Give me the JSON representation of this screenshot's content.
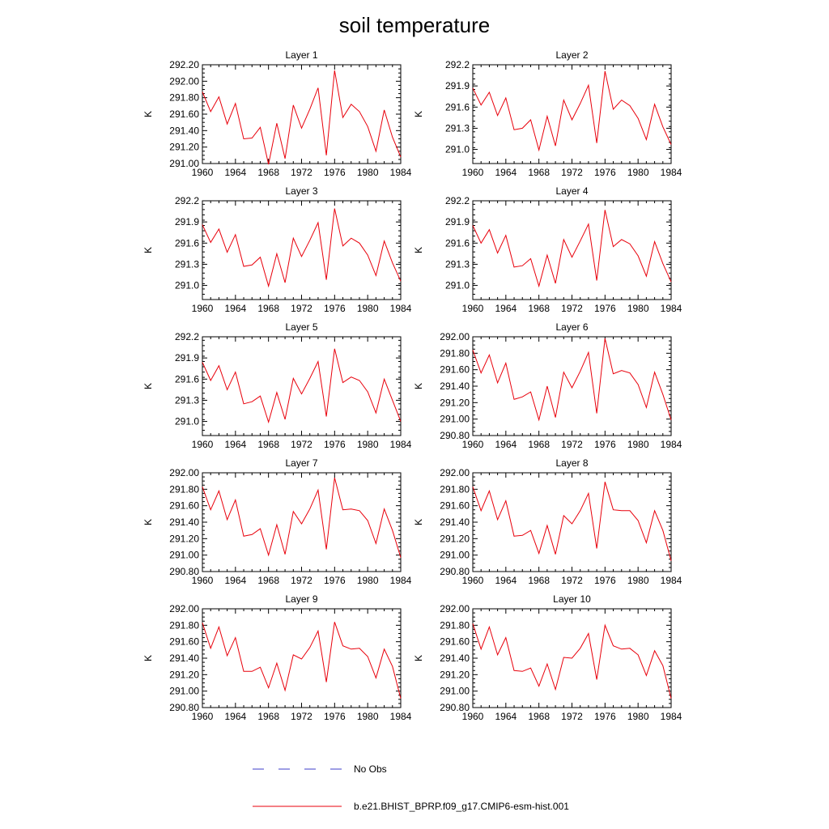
{
  "title": "soil temperature",
  "colors": {
    "model": "#e8000b",
    "obs": "#3c3cc8",
    "axis": "#000000"
  },
  "legend": {
    "obs_label": "No Obs",
    "model_label": "b.e21.BHIST_BPRP.f09_g17.CMIP6-esm-hist.001"
  },
  "chart_data": [
    {
      "type": "line",
      "title": "Layer 1",
      "ylabel": "K",
      "xlim": [
        1960,
        1984
      ],
      "ylim": [
        291.0,
        292.2
      ],
      "xticks": [
        "1960",
        "1964",
        "1968",
        "1972",
        "1976",
        "1980",
        "1984"
      ],
      "yticks": [
        "291.00",
        "291.20",
        "291.40",
        "291.60",
        "291.80",
        "292.00",
        "292.20"
      ],
      "x": [
        1960,
        1961,
        1962,
        1963,
        1964,
        1965,
        1966,
        1967,
        1968,
        1969,
        1970,
        1971,
        1972,
        1973,
        1974,
        1975,
        1976,
        1977,
        1978,
        1979,
        1980,
        1981,
        1982,
        1983,
        1984
      ],
      "series": [
        {
          "name": "b.e21.BHIST_BPRP.f09_g17.CMIP6-esm-hist.001",
          "values": [
            291.87,
            291.63,
            291.81,
            291.48,
            291.73,
            291.3,
            291.31,
            291.44,
            290.99,
            291.49,
            291.06,
            291.71,
            291.43,
            291.66,
            291.92,
            291.1,
            292.13,
            291.56,
            291.72,
            291.63,
            291.45,
            291.15,
            291.65,
            291.32,
            291.08
          ]
        }
      ]
    },
    {
      "type": "line",
      "title": "Layer 2",
      "ylabel": "K",
      "xlim": [
        1960,
        1984
      ],
      "ylim": [
        290.8,
        292.2
      ],
      "xticks": [
        "1960",
        "1964",
        "1968",
        "1972",
        "1976",
        "1980",
        "1984"
      ],
      "yticks": [
        "291.0",
        "291.3",
        "291.6",
        "291.9",
        "292.2"
      ],
      "x": [
        1960,
        1961,
        1962,
        1963,
        1964,
        1965,
        1966,
        1967,
        1968,
        1969,
        1970,
        1971,
        1972,
        1973,
        1974,
        1975,
        1976,
        1977,
        1978,
        1979,
        1980,
        1981,
        1982,
        1983,
        1984
      ],
      "series": [
        {
          "name": "b.e21.BHIST_BPRP.f09_g17.CMIP6-esm-hist.001",
          "values": [
            291.87,
            291.63,
            291.81,
            291.48,
            291.73,
            291.28,
            291.3,
            291.42,
            290.99,
            291.47,
            291.05,
            291.7,
            291.42,
            291.65,
            291.91,
            291.09,
            292.11,
            291.57,
            291.7,
            291.62,
            291.44,
            291.14,
            291.64,
            291.32,
            291.07
          ]
        }
      ]
    },
    {
      "type": "line",
      "title": "Layer 3",
      "ylabel": "K",
      "xlim": [
        1960,
        1984
      ],
      "ylim": [
        290.8,
        292.2
      ],
      "xticks": [
        "1960",
        "1964",
        "1968",
        "1972",
        "1976",
        "1980",
        "1984"
      ],
      "yticks": [
        "291.0",
        "291.3",
        "291.6",
        "291.9",
        "292.2"
      ],
      "x": [
        1960,
        1961,
        1962,
        1963,
        1964,
        1965,
        1966,
        1967,
        1968,
        1969,
        1970,
        1971,
        1972,
        1973,
        1974,
        1975,
        1976,
        1977,
        1978,
        1979,
        1980,
        1981,
        1982,
        1983,
        1984
      ],
      "series": [
        {
          "name": "b.e21.BHIST_BPRP.f09_g17.CMIP6-esm-hist.001",
          "values": [
            291.86,
            291.61,
            291.8,
            291.47,
            291.72,
            291.27,
            291.29,
            291.4,
            290.99,
            291.45,
            291.04,
            291.67,
            291.41,
            291.64,
            291.89,
            291.08,
            292.09,
            291.56,
            291.67,
            291.6,
            291.43,
            291.14,
            291.63,
            291.32,
            291.06
          ]
        }
      ]
    },
    {
      "type": "line",
      "title": "Layer 4",
      "ylabel": "K",
      "xlim": [
        1960,
        1984
      ],
      "ylim": [
        290.8,
        292.2
      ],
      "xticks": [
        "1960",
        "1964",
        "1968",
        "1972",
        "1976",
        "1980",
        "1984"
      ],
      "yticks": [
        "291.0",
        "291.3",
        "291.6",
        "291.9",
        "292.2"
      ],
      "x": [
        1960,
        1961,
        1962,
        1963,
        1964,
        1965,
        1966,
        1967,
        1968,
        1969,
        1970,
        1971,
        1972,
        1973,
        1974,
        1975,
        1976,
        1977,
        1978,
        1979,
        1980,
        1981,
        1982,
        1983,
        1984
      ],
      "series": [
        {
          "name": "b.e21.BHIST_BPRP.f09_g17.CMIP6-esm-hist.001",
          "values": [
            291.85,
            291.6,
            291.79,
            291.46,
            291.71,
            291.26,
            291.28,
            291.38,
            290.99,
            291.43,
            291.03,
            291.65,
            291.4,
            291.63,
            291.87,
            291.07,
            292.07,
            291.55,
            291.65,
            291.59,
            291.42,
            291.13,
            291.62,
            291.31,
            291.05
          ]
        }
      ]
    },
    {
      "type": "line",
      "title": "Layer 5",
      "ylabel": "K",
      "xlim": [
        1960,
        1984
      ],
      "ylim": [
        290.8,
        292.2
      ],
      "xticks": [
        "1960",
        "1964",
        "1968",
        "1972",
        "1976",
        "1980",
        "1984"
      ],
      "yticks": [
        "291.0",
        "291.3",
        "291.6",
        "291.9",
        "292.2"
      ],
      "x": [
        1960,
        1961,
        1962,
        1963,
        1964,
        1965,
        1966,
        1967,
        1968,
        1969,
        1970,
        1971,
        1972,
        1973,
        1974,
        1975,
        1976,
        1977,
        1978,
        1979,
        1980,
        1981,
        1982,
        1983,
        1984
      ],
      "series": [
        {
          "name": "b.e21.BHIST_BPRP.f09_g17.CMIP6-esm-hist.001",
          "values": [
            291.84,
            291.58,
            291.79,
            291.45,
            291.7,
            291.25,
            291.28,
            291.36,
            290.99,
            291.41,
            291.03,
            291.61,
            291.39,
            291.61,
            291.85,
            291.07,
            292.03,
            291.55,
            291.63,
            291.58,
            291.42,
            291.12,
            291.6,
            291.3,
            291.0
          ]
        }
      ]
    },
    {
      "type": "line",
      "title": "Layer 6",
      "ylabel": "K",
      "xlim": [
        1960,
        1984
      ],
      "ylim": [
        290.8,
        292.0
      ],
      "xticks": [
        "1960",
        "1964",
        "1968",
        "1972",
        "1976",
        "1980",
        "1984"
      ],
      "yticks": [
        "290.80",
        "291.00",
        "291.20",
        "291.40",
        "291.60",
        "291.80",
        "292.00"
      ],
      "x": [
        1960,
        1961,
        1962,
        1963,
        1964,
        1965,
        1966,
        1967,
        1968,
        1969,
        1970,
        1971,
        1972,
        1973,
        1974,
        1975,
        1976,
        1977,
        1978,
        1979,
        1980,
        1981,
        1982,
        1983,
        1984
      ],
      "series": [
        {
          "name": "b.e21.BHIST_BPRP.f09_g17.CMIP6-esm-hist.001",
          "values": [
            291.84,
            291.56,
            291.78,
            291.44,
            291.68,
            291.24,
            291.27,
            291.33,
            290.99,
            291.4,
            291.02,
            291.57,
            291.38,
            291.58,
            291.81,
            291.07,
            291.98,
            291.55,
            291.59,
            291.56,
            291.42,
            291.14,
            291.57,
            291.3,
            290.99
          ]
        }
      ]
    },
    {
      "type": "line",
      "title": "Layer 7",
      "ylabel": "K",
      "xlim": [
        1960,
        1984
      ],
      "ylim": [
        290.8,
        292.0
      ],
      "xticks": [
        "1960",
        "1964",
        "1968",
        "1972",
        "1976",
        "1980",
        "1984"
      ],
      "yticks": [
        "290.80",
        "291.00",
        "291.20",
        "291.40",
        "291.60",
        "291.80",
        "292.00"
      ],
      "x": [
        1960,
        1961,
        1962,
        1963,
        1964,
        1965,
        1966,
        1967,
        1968,
        1969,
        1970,
        1971,
        1972,
        1973,
        1974,
        1975,
        1976,
        1977,
        1978,
        1979,
        1980,
        1981,
        1982,
        1983,
        1984
      ],
      "series": [
        {
          "name": "b.e21.BHIST_BPRP.f09_g17.CMIP6-esm-hist.001",
          "values": [
            291.83,
            291.55,
            291.78,
            291.43,
            291.67,
            291.23,
            291.25,
            291.32,
            291.0,
            291.37,
            291.01,
            291.53,
            291.38,
            291.56,
            291.79,
            291.07,
            291.94,
            291.55,
            291.56,
            291.54,
            291.42,
            291.14,
            291.56,
            291.3,
            290.97
          ]
        }
      ]
    },
    {
      "type": "line",
      "title": "Layer 8",
      "ylabel": "K",
      "xlim": [
        1960,
        1984
      ],
      "ylim": [
        290.8,
        292.0
      ],
      "xticks": [
        "1960",
        "1964",
        "1968",
        "1972",
        "1976",
        "1980",
        "1984"
      ],
      "yticks": [
        "290.80",
        "291.00",
        "291.20",
        "291.40",
        "291.60",
        "291.80",
        "292.00"
      ],
      "x": [
        1960,
        1961,
        1962,
        1963,
        1964,
        1965,
        1966,
        1967,
        1968,
        1969,
        1970,
        1971,
        1972,
        1973,
        1974,
        1975,
        1976,
        1977,
        1978,
        1979,
        1980,
        1981,
        1982,
        1983,
        1984
      ],
      "series": [
        {
          "name": "b.e21.BHIST_BPRP.f09_g17.CMIP6-esm-hist.001",
          "values": [
            291.83,
            291.54,
            291.78,
            291.43,
            291.66,
            291.23,
            291.24,
            291.3,
            291.02,
            291.36,
            291.01,
            291.48,
            291.38,
            291.54,
            291.75,
            291.08,
            291.89,
            291.55,
            291.54,
            291.54,
            291.42,
            291.15,
            291.54,
            291.3,
            290.93
          ]
        }
      ]
    },
    {
      "type": "line",
      "title": "Layer 9",
      "ylabel": "K",
      "xlim": [
        1960,
        1984
      ],
      "ylim": [
        290.8,
        292.0
      ],
      "xticks": [
        "1960",
        "1964",
        "1968",
        "1972",
        "1976",
        "1980",
        "1984"
      ],
      "yticks": [
        "290.80",
        "291.00",
        "291.20",
        "291.40",
        "291.60",
        "291.80",
        "292.00"
      ],
      "x": [
        1960,
        1961,
        1962,
        1963,
        1964,
        1965,
        1966,
        1967,
        1968,
        1969,
        1970,
        1971,
        1972,
        1973,
        1974,
        1975,
        1976,
        1977,
        1978,
        1979,
        1980,
        1981,
        1982,
        1983,
        1984
      ],
      "series": [
        {
          "name": "b.e21.BHIST_BPRP.f09_g17.CMIP6-esm-hist.001",
          "values": [
            291.83,
            291.52,
            291.78,
            291.43,
            291.65,
            291.24,
            291.24,
            291.29,
            291.04,
            291.34,
            291.01,
            291.44,
            291.39,
            291.53,
            291.73,
            291.11,
            291.84,
            291.55,
            291.51,
            291.52,
            291.42,
            291.16,
            291.51,
            291.3,
            290.91
          ]
        }
      ]
    },
    {
      "type": "line",
      "title": "Layer 10",
      "ylabel": "K",
      "xlim": [
        1960,
        1984
      ],
      "ylim": [
        290.8,
        292.0
      ],
      "xticks": [
        "1960",
        "1964",
        "1968",
        "1972",
        "1976",
        "1980",
        "1984"
      ],
      "yticks": [
        "290.80",
        "291.00",
        "291.20",
        "291.40",
        "291.60",
        "291.80",
        "292.00"
      ],
      "x": [
        1960,
        1961,
        1962,
        1963,
        1964,
        1965,
        1966,
        1967,
        1968,
        1969,
        1970,
        1971,
        1972,
        1973,
        1974,
        1975,
        1976,
        1977,
        1978,
        1979,
        1980,
        1981,
        1982,
        1983,
        1984
      ],
      "series": [
        {
          "name": "b.e21.BHIST_BPRP.f09_g17.CMIP6-esm-hist.001",
          "values": [
            291.82,
            291.51,
            291.78,
            291.44,
            291.65,
            291.25,
            291.24,
            291.28,
            291.06,
            291.33,
            291.02,
            291.41,
            291.4,
            291.52,
            291.7,
            291.14,
            291.8,
            291.55,
            291.51,
            291.52,
            291.44,
            291.19,
            291.49,
            291.31,
            290.91
          ]
        }
      ]
    }
  ]
}
